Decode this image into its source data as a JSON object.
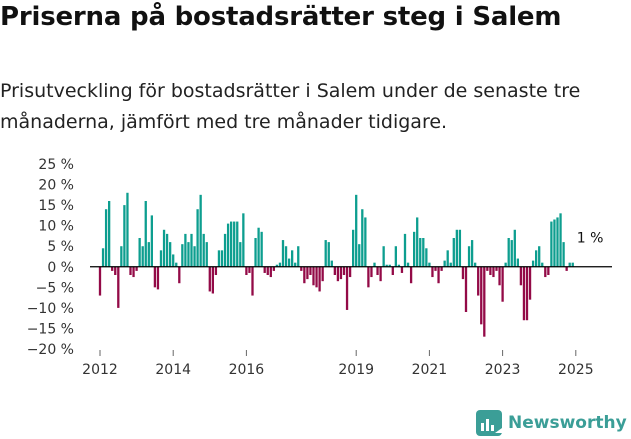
{
  "header": {
    "title": "Priserna på bostadsrätter steg i Salem",
    "subtitle": "Prisutveckling för bostadsrätter i Salem under de senaste tre månaderna, jämfört med tre månader tidigare."
  },
  "brand": {
    "name": "Newsworthy",
    "logo_icon": "bar-chart-logo-icon"
  },
  "colors": {
    "positive": "#0d9e8f",
    "negative": "#930a47",
    "zero_line": "#000000",
    "axis_text": "#333333",
    "brand": "#3b9e97"
  },
  "chart_data": {
    "type": "bar",
    "title": "Priserna på bostadsrätter steg i Salem",
    "subtitle": "Prisutveckling för bostadsrätter i Salem under de senaste tre månaderna, jämfört med tre månader tidigare.",
    "xlabel": "",
    "ylabel": "",
    "ylim": [
      -20,
      25
    ],
    "yticks": [
      25,
      20,
      15,
      10,
      5,
      0,
      -5,
      -10,
      -15,
      -20
    ],
    "ytick_labels": [
      "25 %",
      "20 %",
      "15 %",
      "10 %",
      "5 %",
      "0 %",
      "−5 %",
      "−10 %",
      "−15 %",
      "−20 %"
    ],
    "xticks": [
      "2012",
      "2014",
      "2016",
      "2019",
      "2021",
      "2023",
      "2025"
    ],
    "grid": false,
    "legend": "none",
    "start": "2012-01",
    "frequency": "monthly",
    "values": [
      -7,
      4.5,
      14,
      16,
      -1,
      -2,
      -10,
      5,
      15,
      18,
      -2,
      -2.5,
      -1,
      7,
      5,
      16,
      6,
      12.5,
      -5,
      -5.5,
      4,
      9,
      8,
      6,
      3,
      1,
      -4,
      5.5,
      8,
      6,
      8,
      5,
      14,
      17.5,
      8,
      6,
      -6,
      -6.5,
      -2,
      4,
      4,
      8,
      10.5,
      11,
      11,
      11,
      6,
      13,
      -2,
      -1.5,
      -7,
      7,
      9.5,
      8.5,
      -1.5,
      -2,
      -2.5,
      -1,
      0.5,
      1,
      6.5,
      5,
      2,
      4,
      1,
      5,
      -1,
      -4,
      -3,
      -2,
      -4.5,
      -5,
      -6,
      -3.5,
      6.5,
      6,
      1.5,
      -2,
      -3.5,
      -3,
      -2,
      -10.5,
      -2.5,
      9,
      17.5,
      5.5,
      14,
      12,
      -5,
      -2.5,
      1,
      -2,
      -3.5,
      5,
      0.5,
      0.5,
      -2,
      5,
      0.5,
      -1.5,
      8,
      1,
      -4,
      8.5,
      12,
      7,
      7,
      4.5,
      1,
      -2.5,
      -1,
      -4,
      -1,
      1.5,
      4,
      1,
      7,
      9,
      9,
      -3,
      -11,
      5,
      6.5,
      1,
      -7,
      -14,
      -17,
      -1,
      -2,
      -2.5,
      -1,
      -4.5,
      -8.5,
      1,
      7,
      6.5,
      9,
      2,
      -4.5,
      -13,
      -13,
      -8,
      1.5,
      4,
      5,
      1,
      -2.5,
      -2,
      11,
      11.5,
      12,
      13,
      6,
      -1,
      1,
      1
    ],
    "annotations": [
      {
        "text": "1 %",
        "x": "2025-01",
        "y": 1
      }
    ]
  }
}
